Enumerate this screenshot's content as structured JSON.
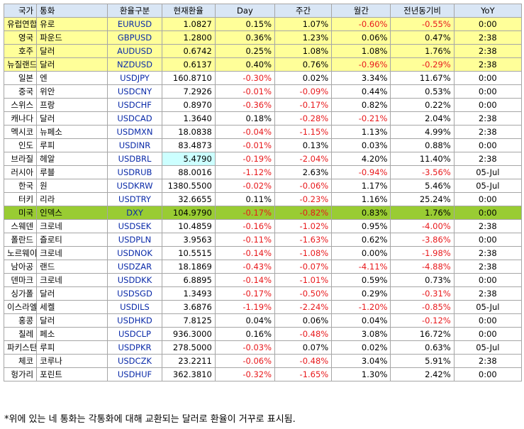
{
  "columns": [
    "국가",
    "통화",
    "환율구분",
    "현재환율",
    "Day",
    "주간",
    "월간",
    "전년동기비",
    "YoY"
  ],
  "rows": [
    {
      "country": "유럽연합",
      "currency": "유로",
      "code": "EURUSD",
      "rate": "1.0827",
      "day": "0.15%",
      "week": "1.07%",
      "month": "-0.60%",
      "yoy_change": "-0.55%",
      "yoy": "0:00",
      "highlight": "yellow"
    },
    {
      "country": "영국",
      "currency": "파운드",
      "code": "GBPUSD",
      "rate": "1.2800",
      "day": "0.36%",
      "week": "1.23%",
      "month": "0.06%",
      "yoy_change": "0.47%",
      "yoy": "2:38",
      "highlight": "yellow"
    },
    {
      "country": "호주",
      "currency": "달러",
      "code": "AUDUSD",
      "rate": "0.6742",
      "day": "0.25%",
      "week": "1.08%",
      "month": "1.08%",
      "yoy_change": "1.76%",
      "yoy": "2:38",
      "highlight": "yellow"
    },
    {
      "country": "뉴질랜드",
      "currency": "달러",
      "code": "NZDUSD",
      "rate": "0.6137",
      "day": "0.40%",
      "week": "0.76%",
      "month": "-0.96%",
      "yoy_change": "-0.29%",
      "yoy": "2:38",
      "highlight": "yellow"
    },
    {
      "country": "일본",
      "currency": "엔",
      "code": "USDJPY",
      "rate": "160.8710",
      "day": "-0.30%",
      "week": "0.02%",
      "month": "3.34%",
      "yoy_change": "11.67%",
      "yoy": "0:00"
    },
    {
      "country": "중국",
      "currency": "위안",
      "code": "USDCNY",
      "rate": "7.2926",
      "day": "-0.01%",
      "week": "-0.09%",
      "month": "0.44%",
      "yoy_change": "0.53%",
      "yoy": "0:00"
    },
    {
      "country": "스위스",
      "currency": "프랑",
      "code": "USDCHF",
      "rate": "0.8970",
      "day": "-0.36%",
      "week": "-0.17%",
      "month": "0.82%",
      "yoy_change": "0.22%",
      "yoy": "0:00"
    },
    {
      "country": "캐나다",
      "currency": "달러",
      "code": "USDCAD",
      "rate": "1.3640",
      "day": "0.18%",
      "week": "-0.28%",
      "month": "-0.21%",
      "yoy_change": "2.04%",
      "yoy": "2:38"
    },
    {
      "country": "멕시코",
      "currency": "뉴페소",
      "code": "USDMXN",
      "rate": "18.0838",
      "day": "-0.04%",
      "week": "-1.15%",
      "month": "1.13%",
      "yoy_change": "4.99%",
      "yoy": "2:38"
    },
    {
      "country": "인도",
      "currency": "루피",
      "code": "USDINR",
      "rate": "83.4873",
      "day": "-0.01%",
      "week": "0.13%",
      "month": "0.03%",
      "yoy_change": "0.88%",
      "yoy": "0:00"
    },
    {
      "country": "브라질",
      "currency": "헤알",
      "code": "USDBRL",
      "rate": "5.4790",
      "day": "-0.19%",
      "week": "-2.04%",
      "month": "4.20%",
      "yoy_change": "11.40%",
      "yoy": "2:38",
      "rate_highlight": "cyan"
    },
    {
      "country": "러시아",
      "currency": "루블",
      "code": "USDRUB",
      "rate": "88.0016",
      "day": "-1.12%",
      "week": "2.63%",
      "month": "-0.94%",
      "yoy_change": "-3.56%",
      "yoy": "05-Jul"
    },
    {
      "country": "한국",
      "currency": "원",
      "code": "USDKRW",
      "rate": "1380.5500",
      "day": "-0.02%",
      "week": "-0.06%",
      "month": "1.17%",
      "yoy_change": "5.46%",
      "yoy": "05-Jul"
    },
    {
      "country": "터키",
      "currency": "리라",
      "code": "USDTRY",
      "rate": "32.6655",
      "day": "0.11%",
      "week": "-0.23%",
      "month": "1.16%",
      "yoy_change": "25.24%",
      "yoy": "0:00"
    },
    {
      "country": "미국",
      "currency": "인덱스",
      "code": "DXY",
      "rate": "104.9790",
      "day": "-0.17%",
      "week": "-0.82%",
      "month": "0.83%",
      "yoy_change": "1.76%",
      "yoy": "0:00",
      "highlight": "green"
    },
    {
      "country": "스웨덴",
      "currency": "크로네",
      "code": "USDSEK",
      "rate": "10.4859",
      "day": "-0.16%",
      "week": "-1.02%",
      "month": "0.95%",
      "yoy_change": "-4.00%",
      "yoy": "2:38"
    },
    {
      "country": "폴란드",
      "currency": "즐로티",
      "code": "USDPLN",
      "rate": "3.9563",
      "day": "-0.11%",
      "week": "-1.63%",
      "month": "0.62%",
      "yoy_change": "-3.86%",
      "yoy": "0:00"
    },
    {
      "country": "노르웨이",
      "currency": "크로네",
      "code": "USDNOK",
      "rate": "10.5515",
      "day": "-0.14%",
      "week": "-1.08%",
      "month": "0.00%",
      "yoy_change": "-1.98%",
      "yoy": "2:38"
    },
    {
      "country": "남아공",
      "currency": "랜드",
      "code": "USDZAR",
      "rate": "18.1869",
      "day": "-0.43%",
      "week": "-0.07%",
      "month": "-4.11%",
      "yoy_change": "-4.88%",
      "yoy": "2:38"
    },
    {
      "country": "덴마크",
      "currency": "크로네",
      "code": "USDDKK",
      "rate": "6.8895",
      "day": "-0.14%",
      "week": "-1.01%",
      "month": "0.59%",
      "yoy_change": "0.73%",
      "yoy": "0:00"
    },
    {
      "country": "싱가폴",
      "currency": "달러",
      "code": "USDSGD",
      "rate": "1.3493",
      "day": "-0.17%",
      "week": "-0.50%",
      "month": "0.29%",
      "yoy_change": "-0.31%",
      "yoy": "2:38"
    },
    {
      "country": "이스라엘",
      "currency": "세켈",
      "code": "USDILS",
      "rate": "3.6876",
      "day": "-1.19%",
      "week": "-2.24%",
      "month": "-1.20%",
      "yoy_change": "-0.85%",
      "yoy": "05-Jul"
    },
    {
      "country": "홍콩",
      "currency": "달러",
      "code": "USDHKD",
      "rate": "7.8125",
      "day": "0.04%",
      "week": "0.06%",
      "month": "0.04%",
      "yoy_change": "-0.12%",
      "yoy": "0:00"
    },
    {
      "country": "칠레",
      "currency": "페소",
      "code": "USDCLP",
      "rate": "936.3000",
      "day": "0.16%",
      "week": "-0.48%",
      "month": "3.08%",
      "yoy_change": "16.72%",
      "yoy": "0:00"
    },
    {
      "country": "파키스탄",
      "currency": "루피",
      "code": "USDPKR",
      "rate": "278.5000",
      "day": "-0.03%",
      "week": "0.07%",
      "month": "0.02%",
      "yoy_change": "0.63%",
      "yoy": "05-Jul"
    },
    {
      "country": "체코",
      "currency": "코루나",
      "code": "USDCZK",
      "rate": "23.2211",
      "day": "-0.06%",
      "week": "-0.48%",
      "month": "3.04%",
      "yoy_change": "5.91%",
      "yoy": "2:38"
    },
    {
      "country": "헝가리",
      "currency": "포린트",
      "code": "USDHUF",
      "rate": "362.3810",
      "day": "-0.32%",
      "week": "-1.65%",
      "month": "1.30%",
      "yoy_change": "2.42%",
      "yoy": "0:00"
    }
  ],
  "footnote": "*위에 있는 네 통화는 각통화에 대해 교환되는 달러로 환율이 거꾸로 표시됨.",
  "colors": {
    "header_bg": "#d9e6f5",
    "yellow_row": "#ffff99",
    "green_row": "#99cc33",
    "cyan_cell": "#ccffff",
    "negative": "#e8191c",
    "code_text": "#0a2aa8"
  }
}
